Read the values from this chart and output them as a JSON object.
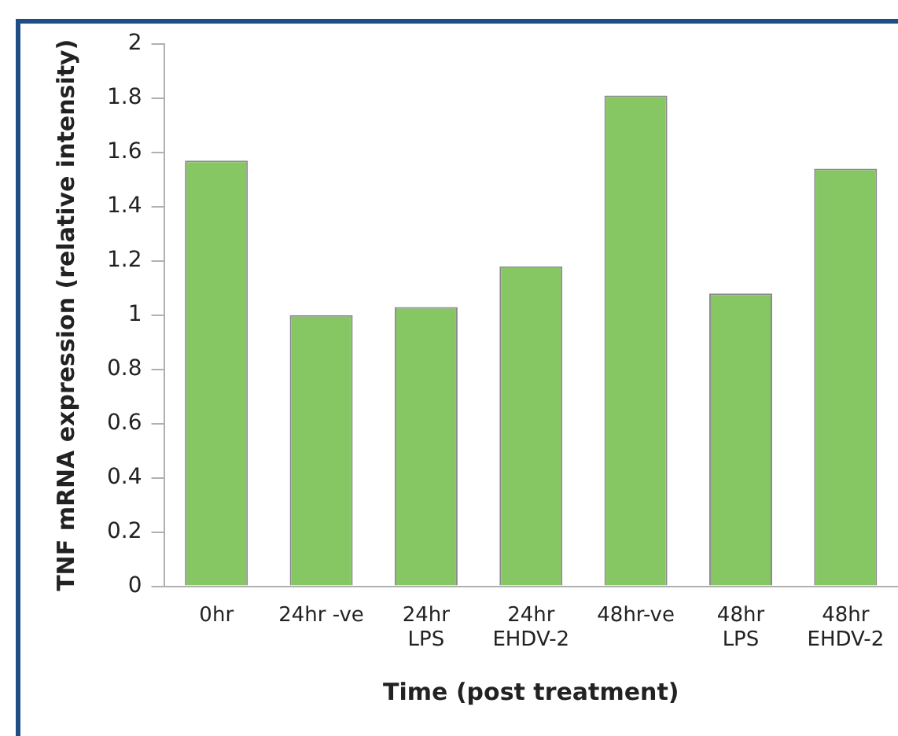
{
  "chart_data": {
    "type": "bar",
    "xlabel": "Time (post treatment)",
    "ylabel": "TNF mRNA expression (relative intensity)",
    "categories": [
      "0hr",
      "24hr -ve",
      "24hr\nLPS",
      "24hr\nEHDV-2",
      "48hr-ve",
      "48hr\nLPS",
      "48hr\nEHDV-2"
    ],
    "values": [
      1.57,
      1.0,
      1.03,
      1.18,
      1.81,
      1.08,
      1.54
    ],
    "color": "#86c663",
    "ylim": [
      0,
      2
    ],
    "yticks": [
      0,
      0.2,
      0.4,
      0.6,
      0.8,
      1,
      1.2,
      1.4,
      1.6,
      1.8,
      2
    ],
    "grid": false,
    "legend": false
  }
}
